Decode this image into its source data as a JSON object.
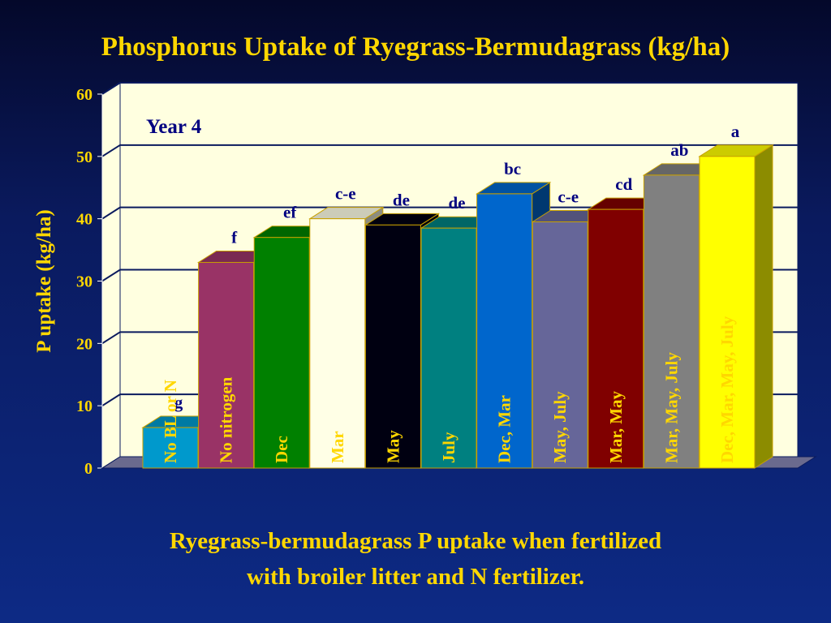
{
  "slide": {
    "title": "Phosphorus Uptake of  Ryegrass-Bermudagrass (kg/ha)",
    "caption_line1": "Ryegrass-bermudagrass P uptake when fertilized",
    "caption_line2": "with broiler litter and N fertilizer."
  },
  "chart_data": {
    "type": "bar",
    "title": "",
    "annotation": "Year 4",
    "xlabel": "",
    "ylabel": "P uptake (kg/ha)",
    "ylim": [
      0,
      60
    ],
    "yticks": [
      "0",
      "10",
      "20",
      "30",
      "40",
      "50",
      "60"
    ],
    "grid": true,
    "categories": [
      "No BL or N",
      "No nitrogen",
      "Dec",
      "Mar",
      "May",
      "July",
      "Dec, Mar",
      "May, July",
      "Mar, May",
      "Mar, May, July",
      "Dec, Mar, May, July"
    ],
    "values": [
      6.5,
      33,
      37,
      40,
      39,
      38.5,
      44,
      39.5,
      41.5,
      47,
      50
    ],
    "significance_letters": [
      "g",
      "f",
      "ef",
      "c-e",
      "de",
      "de",
      "bc",
      "c-e",
      "cd",
      "ab",
      "a"
    ],
    "bar_colors": [
      "#0099cc",
      "#993366",
      "#008000",
      "#ffffe6",
      "#000011",
      "#008080",
      "#0066cc",
      "#666699",
      "#800000",
      "#808080",
      "#ffff00"
    ],
    "label_colors": [
      "#ffd700",
      "#ffd700",
      "#ffd700",
      "#ffd700",
      "#ffd700",
      "#ffd700",
      "#ffd700",
      "#ffd700",
      "#ffd700",
      "#ffd700",
      "#ffd700"
    ],
    "plot_bg": "#ffffe0",
    "letter_color": "#000080"
  }
}
